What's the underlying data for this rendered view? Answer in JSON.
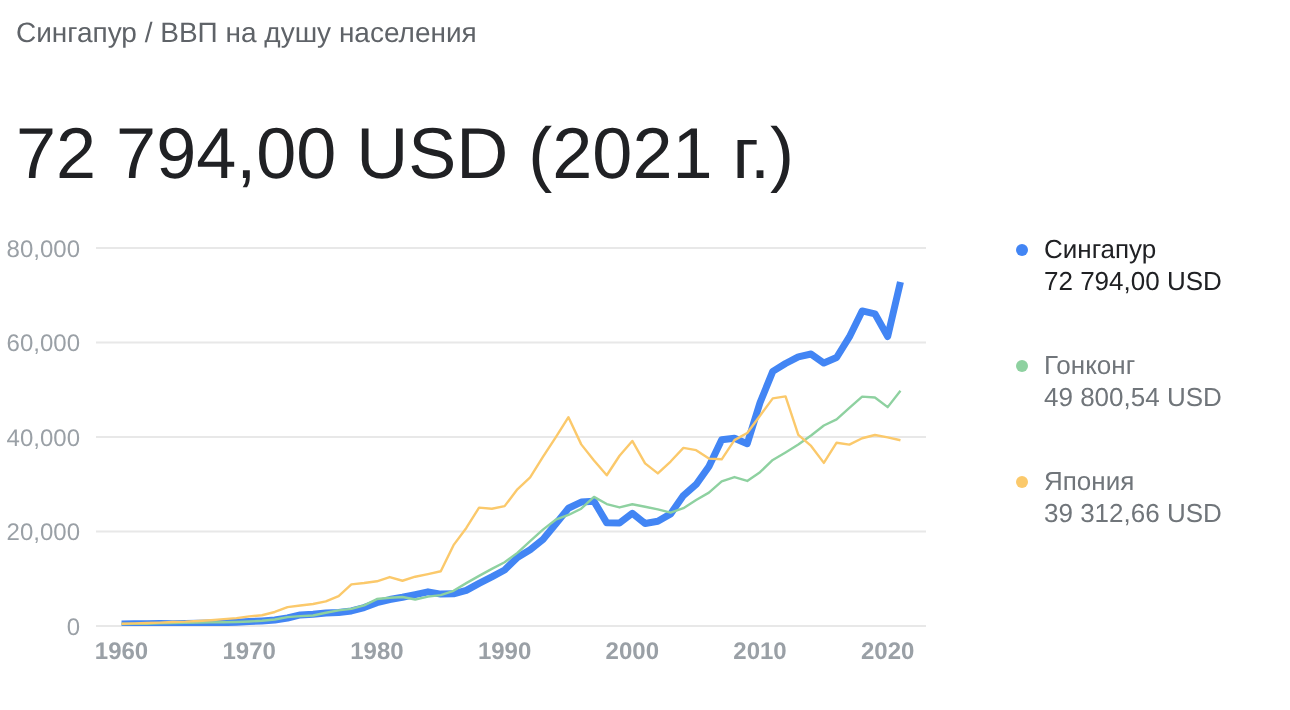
{
  "chart_data": {
    "type": "line",
    "title": "Сингапур / ВВП на душу населения",
    "subtitle": "72 794,00 USD (2021 г.)",
    "x": [
      1960,
      1961,
      1962,
      1963,
      1964,
      1965,
      1966,
      1967,
      1968,
      1969,
      1970,
      1971,
      1972,
      1973,
      1974,
      1975,
      1976,
      1977,
      1978,
      1979,
      1980,
      1981,
      1982,
      1983,
      1984,
      1985,
      1986,
      1987,
      1988,
      1989,
      1990,
      1991,
      1992,
      1993,
      1994,
      1995,
      1996,
      1997,
      1998,
      1999,
      2000,
      2001,
      2002,
      2003,
      2004,
      2005,
      2006,
      2007,
      2008,
      2009,
      2010,
      2011,
      2012,
      2013,
      2014,
      2015,
      2016,
      2017,
      2018,
      2019,
      2020,
      2021
    ],
    "series": [
      {
        "name": "Сингапур",
        "color": "#4285f4",
        "values": [
          430,
          450,
          470,
          510,
          490,
          520,
          570,
          630,
          710,
          810,
          930,
          1070,
          1260,
          1690,
          2340,
          2490,
          2750,
          2850,
          3190,
          3900,
          4930,
          5600,
          6080,
          6630,
          7230,
          6750,
          6800,
          7540,
          9020,
          10400,
          11860,
          14500,
          16140,
          18300,
          21580,
          24920,
          26230,
          26380,
          21830,
          21800,
          23850,
          21700,
          22160,
          23730,
          27610,
          29960,
          33770,
          39430,
          39720,
          38580,
          47240,
          53890,
          55550,
          56970,
          57560,
          55650,
          56830,
          61180,
          66680,
          66070,
          61270,
          72794
        ]
      },
      {
        "name": "Гонконг",
        "color": "#8ed1a0",
        "values": [
          430,
          440,
          490,
          570,
          640,
          680,
          710,
          760,
          790,
          860,
          960,
          1100,
          1380,
          1880,
          2100,
          2220,
          2810,
          3310,
          3620,
          4370,
          5700,
          5990,
          6130,
          5600,
          6210,
          6540,
          7440,
          9070,
          10610,
          12100,
          13490,
          15470,
          17980,
          20400,
          22500,
          23500,
          24820,
          27330,
          25810,
          25090,
          25760,
          25230,
          24670,
          23980,
          24930,
          26650,
          28220,
          30590,
          31520,
          30700,
          32550,
          35140,
          36730,
          38400,
          40320,
          42430,
          43730,
          46170,
          48540,
          48360,
          46320,
          49800.54
        ]
      },
      {
        "name": "Япония",
        "color": "#fbc96b",
        "values": [
          480,
          560,
          630,
          720,
          840,
          920,
          1060,
          1230,
          1450,
          1670,
          2040,
          2270,
          2970,
          4000,
          4350,
          4660,
          5200,
          6340,
          8820,
          9100,
          9460,
          10360,
          9580,
          10430,
          10980,
          11590,
          17110,
          20750,
          25050,
          24810,
          25370,
          28930,
          31470,
          35770,
          39930,
          44200,
          38440,
          35020,
          31900,
          36030,
          39170,
          34410,
          32290,
          34810,
          37690,
          37220,
          35430,
          35280,
          39340,
          40860,
          44510,
          48170,
          48600,
          40450,
          38110,
          34520,
          38790,
          38390,
          39730,
          40420,
          39920,
          39312.66
        ]
      }
    ],
    "annotations": [
      "72 794,00 USD",
      "49 800,54 USD",
      "39 312,66 USD"
    ],
    "xlim": [
      1958,
      2023
    ],
    "xticks": [
      1960,
      1970,
      1980,
      1990,
      2000,
      2010,
      2020
    ],
    "ylim": [
      0,
      80000
    ],
    "yticks": [
      0,
      {
        "value": 20000,
        "label": "20,000"
      },
      {
        "value": 40000,
        "label": "40,000"
      },
      {
        "value": 60000,
        "label": "60,000"
      },
      {
        "value": 80000,
        "label": "80,000"
      }
    ],
    "grid": "y",
    "legend": "right"
  }
}
